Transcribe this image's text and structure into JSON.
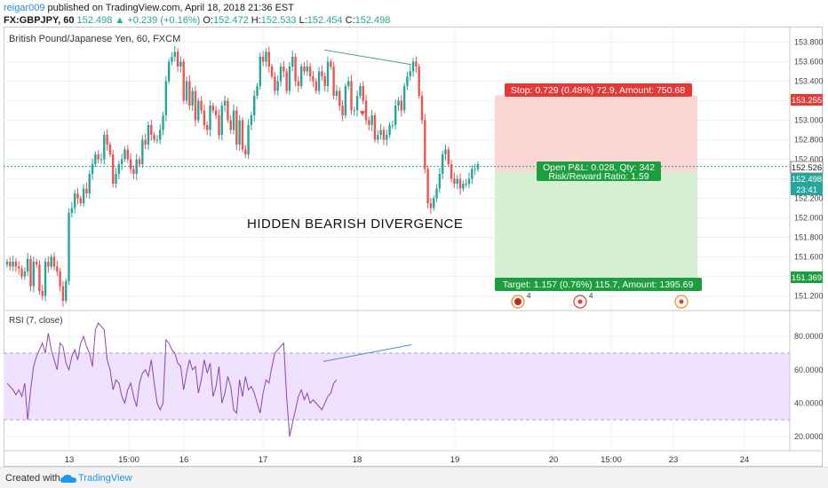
{
  "header": {
    "user": "reigar009",
    "published": "published on TradingView.com, April 18, 2018 21:36 EST",
    "symbol": "FX:GBPJPY, 60",
    "last": "152.498",
    "change": "▲ +0.239 (+0.16%)",
    "o_label": "O:",
    "o": "152.472",
    "h_label": "H:",
    "h": "152.533",
    "l_label": "L:",
    "l": "152.454",
    "c_label": "C:",
    "c": "152.498"
  },
  "chart_title": "British Pound/Japanese Yen, 60, FXCM",
  "annotation": "HIDDEN BEARISH DIVERGENCE",
  "position": {
    "stop_label": "Stop: 0.729 (0.48%) 72.9, Amount: 750.68",
    "pnl_label": "Open P&L: 0.028, Qty: 342",
    "rr_label": "Risk/Reward Ratio: 1.59",
    "target_label": "Target: 1.157 (0.76%) 115.7, Amount: 1395.69"
  },
  "price_axis": {
    "ticks": [
      "153.800",
      "153.600",
      "153.400",
      "153.200",
      "153.000",
      "152.800",
      "152.600",
      "152.400",
      "152.200",
      "152.000",
      "151.800",
      "151.600",
      "151.400",
      "151.200"
    ],
    "stop_tag": "153.255",
    "current_tag": "152.526",
    "bid_tag": "152.498",
    "time_tag": "23:41",
    "target_tag": "151.369"
  },
  "rsi": {
    "title": "RSI (7, close)",
    "ticks": [
      "80.0000",
      "60.0000",
      "40.0000",
      "20.0000"
    ]
  },
  "time_axis": [
    "13",
    "15:00",
    "16",
    "17",
    "18",
    "19",
    "20",
    "15:00",
    "23",
    "24"
  ],
  "events": [
    {
      "count": "4"
    },
    {
      "count": "4"
    },
    {
      "count": ""
    }
  ],
  "footer": {
    "created": "Created with",
    "brand": "TradingView"
  },
  "colors": {
    "up": "#26a69a",
    "down": "#ef5350",
    "stop_zone": "#fbd6d4",
    "target_zone": "#d4f0d1",
    "rsi_line": "#8e44ad",
    "rsi_band": "#efe1ff",
    "accent": "#2196f3"
  },
  "chart_data": [
    {
      "type": "candlestick",
      "title": "British Pound/Japanese Yen, 60, FXCM",
      "ylim": [
        151.05,
        153.95
      ],
      "y_ticks": [
        151.2,
        151.4,
        151.6,
        151.8,
        152.0,
        152.2,
        152.4,
        152.6,
        152.8,
        153.0,
        153.2,
        153.4,
        153.6,
        153.8
      ],
      "x_ticks": [
        "13",
        "15:00",
        "16",
        "17",
        "18",
        "19",
        "20",
        "15:00",
        "23",
        "24"
      ],
      "close": [
        151.55,
        151.5,
        151.55,
        151.5,
        151.48,
        151.4,
        151.45,
        151.58,
        151.3,
        151.55,
        151.52,
        151.25,
        151.2,
        151.55,
        151.5,
        151.6,
        151.5,
        151.45,
        151.3,
        151.15,
        151.35,
        152.05,
        152.1,
        152.25,
        152.2,
        152.15,
        152.3,
        152.25,
        152.45,
        152.55,
        152.65,
        152.6,
        152.6,
        152.85,
        152.75,
        152.65,
        152.35,
        152.45,
        152.55,
        152.6,
        152.7,
        152.6,
        152.5,
        152.45,
        152.6,
        152.55,
        152.8,
        152.75,
        152.95,
        152.85,
        152.8,
        152.8,
        152.9,
        153.05,
        153.4,
        153.6,
        153.65,
        153.7,
        153.55,
        153.6,
        153.2,
        153.4,
        153.15,
        153.3,
        153.0,
        153.2,
        153.1,
        152.95,
        152.9,
        153.15,
        153.1,
        153.05,
        152.85,
        153.15,
        153.2,
        153.0,
        152.9,
        153.1,
        152.75,
        153.0,
        152.7,
        152.65,
        152.95,
        153.05,
        153.25,
        153.35,
        153.65,
        153.6,
        153.7,
        153.55,
        153.45,
        153.3,
        153.4,
        153.55,
        153.5,
        153.3,
        153.55,
        153.65,
        153.4,
        153.35,
        153.55,
        153.5,
        153.55,
        153.45,
        153.4,
        153.3,
        153.5,
        153.45,
        153.35,
        153.6,
        153.55,
        153.25,
        153.3,
        153.15,
        153.05,
        153.35,
        153.4,
        153.1,
        153.1,
        153.25,
        153.35,
        153.2,
        153.0,
        152.95,
        153.05,
        152.8,
        152.85,
        152.9,
        152.8,
        152.85,
        152.95,
        152.95,
        153.15,
        153.2,
        153.1,
        153.35,
        153.45,
        153.5,
        153.6,
        153.55,
        153.25,
        153.0,
        152.5,
        152.15,
        152.1,
        152.2,
        152.3,
        152.45,
        152.65,
        152.7,
        152.55,
        152.4,
        152.35,
        152.4,
        152.3,
        152.35,
        152.35,
        152.4,
        152.5,
        152.5,
        152.55
      ]
    },
    {
      "type": "line",
      "title": "RSI (7, close)",
      "ylim": [
        12,
        95
      ],
      "y_ticks": [
        20,
        40,
        60,
        80
      ],
      "band": [
        30,
        70
      ],
      "values": [
        52,
        50,
        48,
        45,
        48,
        44,
        52,
        30,
        48,
        62,
        68,
        72,
        76,
        70,
        82,
        72,
        66,
        60,
        76,
        74,
        64,
        60,
        68,
        72,
        66,
        76,
        80,
        74,
        70,
        62,
        84,
        88,
        86,
        84,
        66,
        60,
        48,
        54,
        52,
        44,
        40,
        48,
        52,
        44,
        38,
        52,
        58,
        60,
        56,
        66,
        52,
        40,
        36,
        40,
        78,
        76,
        72,
        70,
        64,
        62,
        48,
        58,
        66,
        60,
        62,
        46,
        54,
        66,
        58,
        64,
        44,
        50,
        62,
        40,
        46,
        56,
        50,
        36,
        34,
        54,
        44,
        56,
        48,
        50,
        46,
        40,
        34,
        46,
        54,
        52,
        62,
        70,
        72,
        74,
        76,
        44,
        20,
        28,
        36,
        44,
        48,
        42,
        46,
        40,
        42,
        40,
        38,
        36,
        40,
        44,
        46,
        52,
        54
      ]
    }
  ]
}
